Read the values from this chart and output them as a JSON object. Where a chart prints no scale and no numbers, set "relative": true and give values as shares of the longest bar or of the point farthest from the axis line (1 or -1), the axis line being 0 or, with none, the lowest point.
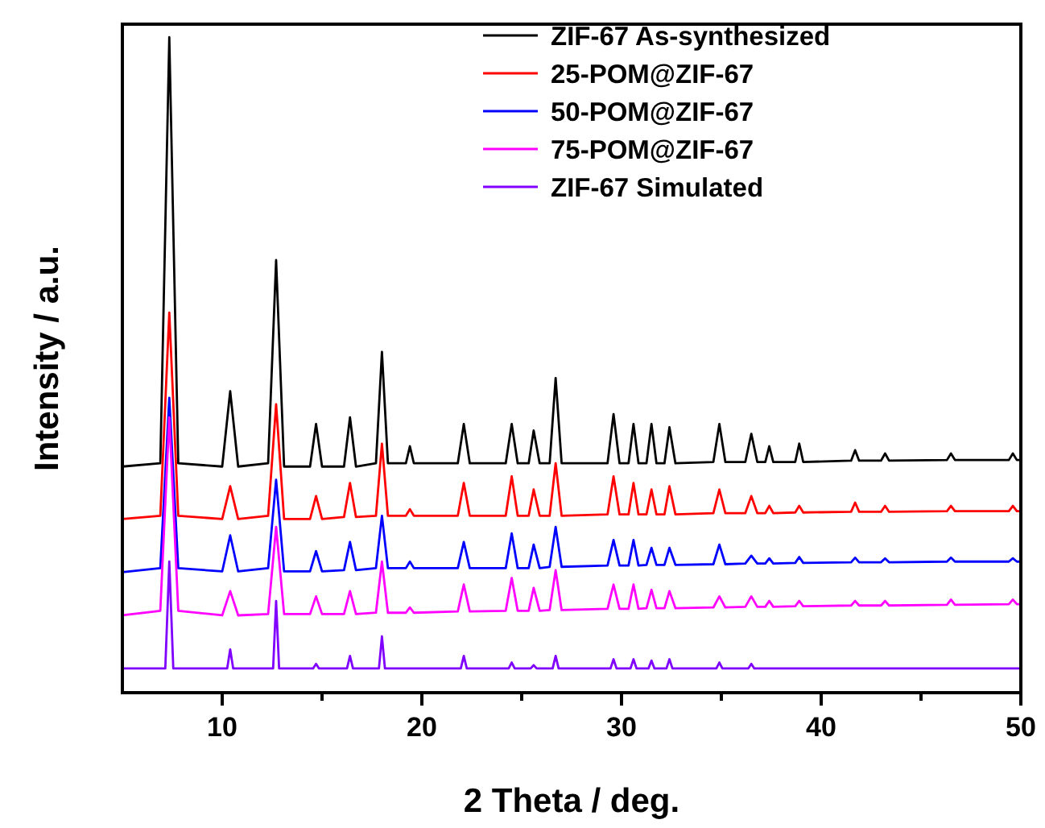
{
  "chart_data": {
    "type": "line",
    "relative": true,
    "xlabel": "2 Theta / deg.",
    "ylabel": "Intensity / a.u.",
    "xlim": [
      5,
      50
    ],
    "xticks": [
      10,
      {
        "value": 15,
        "label": null
      },
      20,
      {
        "value": 25,
        "label": null
      },
      30,
      {
        "value": 35,
        "label": null
      },
      40,
      {
        "value": 45,
        "label": null
      },
      50
    ],
    "legend": "top right",
    "grid": false,
    "marker": "none",
    "line_style": "solid",
    "x": [
      5,
      6.9,
      7.35,
      7.8,
      10.0,
      10.4,
      10.8,
      12.3,
      12.7,
      13.1,
      14.4,
      14.7,
      15.0,
      16.1,
      16.4,
      16.7,
      17.7,
      18.0,
      18.3,
      19.2,
      19.4,
      19.6,
      21.8,
      22.1,
      22.4,
      24.2,
      24.5,
      24.8,
      25.35,
      25.6,
      25.9,
      26.4,
      26.7,
      27.0,
      29.3,
      29.6,
      29.9,
      30.35,
      30.6,
      30.85,
      31.25,
      31.5,
      31.75,
      32.15,
      32.4,
      32.7,
      34.6,
      34.9,
      35.2,
      36.2,
      36.5,
      36.8,
      37.2,
      37.4,
      37.6,
      38.7,
      38.9,
      39.1,
      41.5,
      41.7,
      41.9,
      43.0,
      43.2,
      43.4,
      46.3,
      46.5,
      46.7,
      49.4,
      49.6,
      49.8,
      50
    ],
    "series": [
      {
        "name": "ZIF-67 As-synthesized",
        "color": "#000000",
        "values": [
          0.345,
          0.35,
          1.0,
          0.35,
          0.345,
          0.46,
          0.345,
          0.35,
          0.66,
          0.345,
          0.345,
          0.41,
          0.345,
          0.345,
          0.42,
          0.345,
          0.35,
          0.52,
          0.35,
          0.35,
          0.376,
          0.35,
          0.35,
          0.41,
          0.35,
          0.35,
          0.41,
          0.35,
          0.35,
          0.4,
          0.35,
          0.35,
          0.48,
          0.35,
          0.35,
          0.425,
          0.35,
          0.35,
          0.41,
          0.35,
          0.35,
          0.41,
          0.35,
          0.35,
          0.405,
          0.35,
          0.352,
          0.41,
          0.352,
          0.352,
          0.395,
          0.352,
          0.352,
          0.376,
          0.352,
          0.352,
          0.38,
          0.352,
          0.354,
          0.37,
          0.354,
          0.354,
          0.365,
          0.354,
          0.355,
          0.365,
          0.355,
          0.355,
          0.365,
          0.355,
          0.355
        ]
      },
      {
        "name": "25-POM@ZIF-67",
        "color": "#ff0000",
        "values": [
          0.265,
          0.27,
          0.58,
          0.27,
          0.265,
          0.315,
          0.265,
          0.27,
          0.44,
          0.265,
          0.265,
          0.3,
          0.265,
          0.268,
          0.32,
          0.268,
          0.27,
          0.38,
          0.27,
          0.27,
          0.28,
          0.27,
          0.27,
          0.32,
          0.27,
          0.27,
          0.33,
          0.27,
          0.27,
          0.31,
          0.27,
          0.27,
          0.35,
          0.27,
          0.272,
          0.33,
          0.272,
          0.272,
          0.32,
          0.272,
          0.272,
          0.31,
          0.272,
          0.272,
          0.315,
          0.272,
          0.274,
          0.31,
          0.274,
          0.274,
          0.3,
          0.274,
          0.274,
          0.285,
          0.274,
          0.275,
          0.285,
          0.275,
          0.276,
          0.29,
          0.276,
          0.276,
          0.285,
          0.276,
          0.277,
          0.285,
          0.277,
          0.277,
          0.285,
          0.277,
          0.277
        ]
      },
      {
        "name": "50-POM@ZIF-67",
        "color": "#0000ff",
        "values": [
          0.184,
          0.19,
          0.45,
          0.19,
          0.185,
          0.24,
          0.185,
          0.19,
          0.325,
          0.185,
          0.185,
          0.216,
          0.185,
          0.187,
          0.23,
          0.187,
          0.19,
          0.27,
          0.19,
          0.19,
          0.2,
          0.19,
          0.19,
          0.23,
          0.19,
          0.19,
          0.243,
          0.19,
          0.19,
          0.226,
          0.19,
          0.192,
          0.253,
          0.192,
          0.194,
          0.233,
          0.194,
          0.194,
          0.233,
          0.194,
          0.195,
          0.221,
          0.195,
          0.195,
          0.221,
          0.195,
          0.196,
          0.226,
          0.196,
          0.197,
          0.209,
          0.197,
          0.197,
          0.205,
          0.197,
          0.198,
          0.207,
          0.198,
          0.199,
          0.206,
          0.199,
          0.199,
          0.205,
          0.199,
          0.2,
          0.206,
          0.2,
          0.2,
          0.205,
          0.2,
          0.2
        ]
      },
      {
        "name": "75-POM@ZIF-67",
        "color": "#ff00ff",
        "values": [
          0.118,
          0.125,
          0.42,
          0.125,
          0.118,
          0.155,
          0.118,
          0.12,
          0.253,
          0.12,
          0.12,
          0.147,
          0.12,
          0.12,
          0.155,
          0.12,
          0.122,
          0.2,
          0.122,
          0.122,
          0.13,
          0.122,
          0.124,
          0.165,
          0.124,
          0.125,
          0.175,
          0.125,
          0.125,
          0.16,
          0.125,
          0.126,
          0.187,
          0.126,
          0.128,
          0.165,
          0.128,
          0.128,
          0.165,
          0.128,
          0.129,
          0.157,
          0.129,
          0.129,
          0.155,
          0.129,
          0.13,
          0.147,
          0.13,
          0.131,
          0.147,
          0.131,
          0.131,
          0.14,
          0.131,
          0.132,
          0.14,
          0.132,
          0.133,
          0.14,
          0.133,
          0.133,
          0.14,
          0.133,
          0.134,
          0.142,
          0.134,
          0.135,
          0.142,
          0.135,
          0.135
        ]
      },
      {
        "name": "ZIF-67 Simulated",
        "color": "#8000ff",
        "x": [
          5,
          7.15,
          7.35,
          7.55,
          10.25,
          10.4,
          10.55,
          12.55,
          12.7,
          12.85,
          14.55,
          14.7,
          14.85,
          16.25,
          16.4,
          16.55,
          17.85,
          18.0,
          18.15,
          21.95,
          22.1,
          22.25,
          24.35,
          24.5,
          24.65,
          25.45,
          25.6,
          25.75,
          26.55,
          26.7,
          26.85,
          29.45,
          29.6,
          29.75,
          30.45,
          30.6,
          30.75,
          31.35,
          31.5,
          31.65,
          32.25,
          32.4,
          32.55,
          34.75,
          34.9,
          35.05,
          36.35,
          36.5,
          36.65,
          50
        ],
        "values": [
          0.037,
          0.037,
          0.2,
          0.037,
          0.037,
          0.066,
          0.037,
          0.037,
          0.14,
          0.037,
          0.037,
          0.044,
          0.037,
          0.037,
          0.056,
          0.037,
          0.037,
          0.086,
          0.037,
          0.037,
          0.056,
          0.037,
          0.037,
          0.046,
          0.037,
          0.037,
          0.042,
          0.037,
          0.037,
          0.056,
          0.037,
          0.037,
          0.051,
          0.037,
          0.037,
          0.051,
          0.037,
          0.037,
          0.049,
          0.037,
          0.037,
          0.051,
          0.037,
          0.037,
          0.046,
          0.037,
          0.037,
          0.044,
          0.037,
          0.037
        ]
      }
    ]
  }
}
